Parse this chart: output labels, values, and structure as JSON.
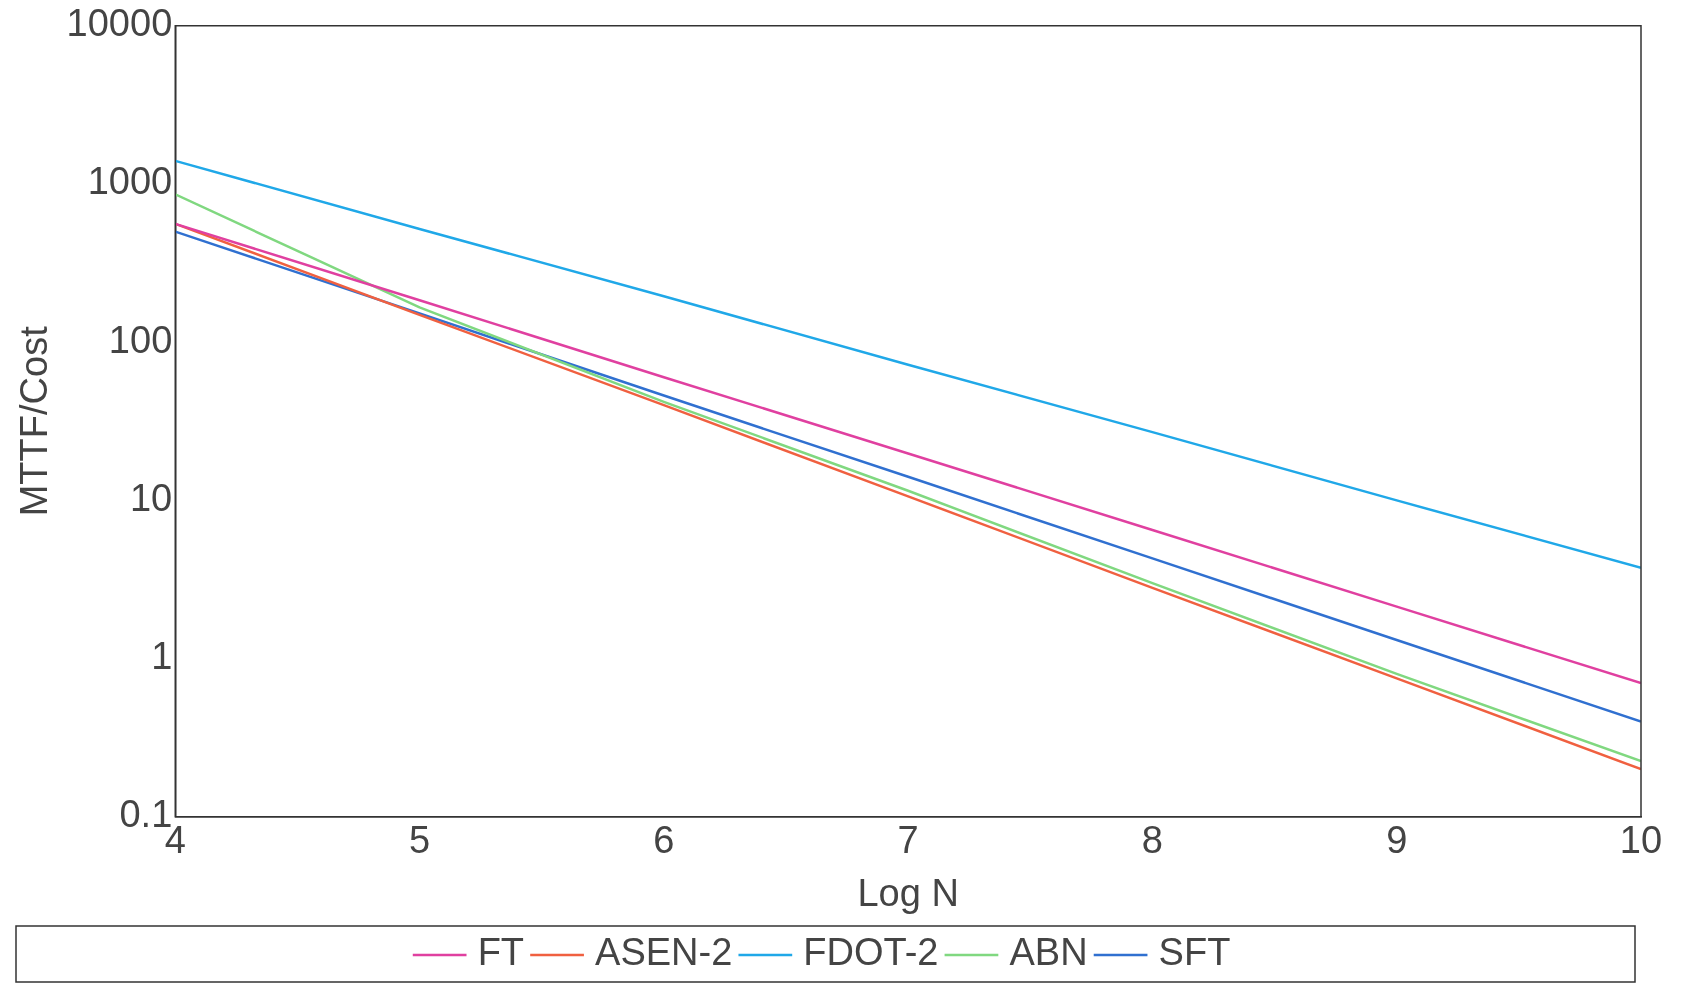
{
  "chart_data": {
    "type": "line",
    "xlabel": "Log N",
    "ylabel": "MTTF/Cost",
    "x": [
      4,
      5,
      6,
      7,
      8,
      9,
      10
    ],
    "series": [
      {
        "name": "FT",
        "color": "#e040a0",
        "values": [
          560,
          184,
          60,
          19.8,
          6.5,
          2.13,
          0.7
        ]
      },
      {
        "name": "ASEN-2",
        "color": "#f06040",
        "values": [
          560,
          149,
          40,
          10.6,
          2.8,
          0.75,
          0.2
        ]
      },
      {
        "name": "FDOT-2",
        "color": "#20a8e8",
        "values": [
          1400,
          520,
          195,
          72,
          27,
          10,
          3.75
        ]
      },
      {
        "name": "ABN",
        "color": "#80d880",
        "values": [
          860,
          166,
          42,
          11.5,
          3,
          0.8,
          0.225
        ]
      },
      {
        "name": "SFT",
        "color": "#3070d0",
        "values": [
          500,
          152,
          46,
          14.1,
          4.3,
          1.31,
          0.4
        ]
      }
    ],
    "xlim": [
      4,
      10
    ],
    "xticks": [
      4,
      5,
      6,
      7,
      8,
      9,
      10
    ],
    "ylim": [
      0.1,
      10000
    ],
    "yticks": [
      0.1,
      1,
      10,
      100,
      1000,
      10000
    ],
    "log": "y",
    "grid": false,
    "legend": "bottom",
    "marker": "none",
    "line_style": "solid"
  }
}
